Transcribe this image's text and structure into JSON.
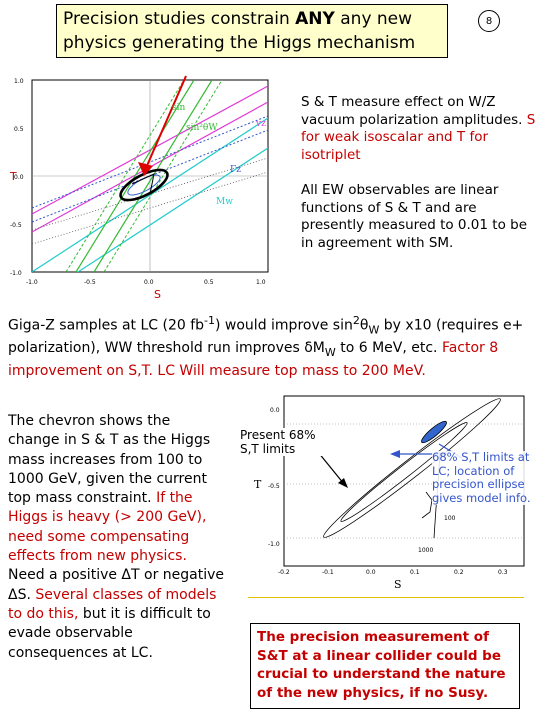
{
  "title": {
    "line1_pre": "Precision studies constrain ",
    "line1_bold": "ANY",
    "line1_post": " any new",
    "line2": "physics generating the Higgs mechanism"
  },
  "page_number": "8",
  "fig1": {
    "ylabel": "T",
    "xlabel": "S",
    "yticks": [
      "1.0",
      "0.5",
      "0.0",
      "-0.5",
      "-1.0"
    ],
    "xticks": [
      "-1.0",
      "-0.5",
      "0.0",
      "0.5",
      "1.0"
    ],
    "labels": {
      "sin": "sin",
      "sin2w": "sin²θW",
      "vz": "vz",
      "gz": "Γz",
      "mw": "Mw"
    }
  },
  "para_st": "S & T measure effect on W/Z vacuum polarization amplitudes.",
  "para_st_red": "S for weak isoscalar and T for isotriplet",
  "para_ew": "All EW observables are linear functions of S & T and are presently measured to 0.01 to be in agreement with SM.",
  "gigaz": {
    "t1": "Giga-Z samples at LC (20 fb",
    "sup1": "-1",
    "t2": ") would improve sin",
    "sup2": "2",
    "t3": "θ",
    "sub3": "W",
    "t4": " by x10 (requires e+ polarization), WW threshold run improves δM",
    "sub4": "W",
    "t5": " to 6 MeV, etc.",
    "red": "Factor 8 improvement on S,T.  LC Will measure top mass to 200 MeV."
  },
  "chevron": {
    "black": "The chevron shows the change in S & T as the Higgs mass increases from 100 to 1000 GeV, given the current top mass constraint.",
    "red1": "If the Higgs is heavy (> 200 GeV), need some compensating effects from new physics.",
    "black2": "Need a positive ΔT or negative ΔS.",
    "red2": "Several classes of models to do this,",
    "black3": "but it is difficult to evade observable consequences at LC."
  },
  "fig2": {
    "ylabel": "T",
    "xlabel": "S",
    "yticks": [
      "0.0",
      "-0.5",
      "-1.0"
    ],
    "xticks": [
      "-0.2",
      "-0.1",
      "0.0",
      "0.1",
      "0.2",
      "0.3"
    ],
    "mass_labels": [
      "100",
      "1000"
    ],
    "annot_present": "Present 68% S,T limits",
    "annot_lc": "68% S,T limits at LC; location of precision ellipse gives model info."
  },
  "bottom_box": "The precision measurement of S&T at a linear collider could be crucial to understand the nature of the new physics, if no Susy.",
  "colors": {
    "red": "#c40000",
    "title_bg": "#ffffcc",
    "rule": "#e5c100"
  }
}
